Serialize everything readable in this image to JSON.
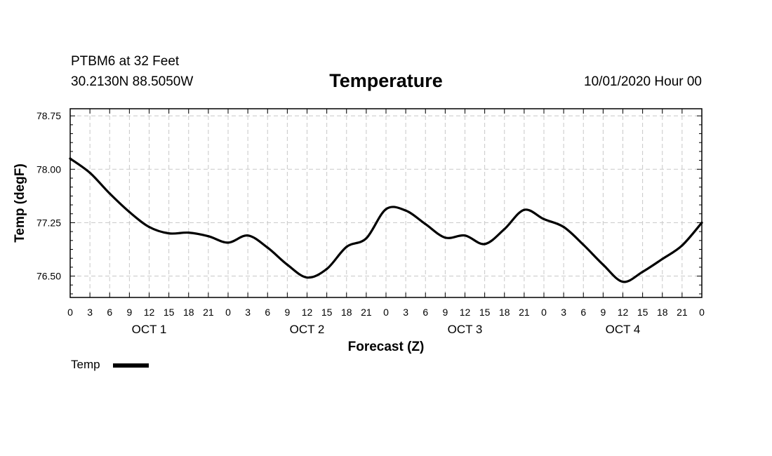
{
  "header": {
    "station": "PTBM6 at 32 Feet",
    "coords": "30.2130N 88.5050W",
    "run_time": "10/01/2020 Hour 00"
  },
  "chart_data": {
    "type": "line",
    "title": "Temperature",
    "xlabel": "Forecast (Z)",
    "ylabel": "Temp (degF)",
    "ylim": [
      76.2,
      78.85
    ],
    "yticks": [
      76.5,
      77.25,
      78.0,
      78.75
    ],
    "ytick_labels": [
      "76.50",
      "77.25",
      "78.00",
      "78.75"
    ],
    "xlim": [
      0,
      96
    ],
    "xticks": [
      0,
      3,
      6,
      9,
      12,
      15,
      18,
      21,
      24,
      27,
      30,
      33,
      36,
      39,
      42,
      45,
      48,
      51,
      54,
      57,
      60,
      63,
      66,
      69,
      72,
      75,
      78,
      81,
      84,
      87,
      90,
      93,
      96
    ],
    "xtick_labels": [
      "0",
      "3",
      "6",
      "9",
      "12",
      "15",
      "18",
      "21",
      "0",
      "3",
      "6",
      "9",
      "12",
      "15",
      "18",
      "21",
      "0",
      "3",
      "6",
      "9",
      "12",
      "15",
      "18",
      "21",
      "0",
      "3",
      "6",
      "9",
      "12",
      "15",
      "18",
      "21",
      "0"
    ],
    "day_labels": [
      {
        "label": "OCT 1",
        "x": 12
      },
      {
        "label": "OCT 2",
        "x": 36
      },
      {
        "label": "OCT 3",
        "x": 60
      },
      {
        "label": "OCT 4",
        "x": 84
      }
    ],
    "grid": true,
    "legend": {
      "position": "bottom-left",
      "entries": [
        "Temp"
      ]
    },
    "series": [
      {
        "name": "Temp",
        "color": "#000000",
        "x": [
          0,
          3,
          6,
          9,
          12,
          15,
          18,
          21,
          24,
          27,
          30,
          33,
          36,
          39,
          42,
          45,
          48,
          51,
          54,
          57,
          60,
          63,
          66,
          69,
          72,
          75,
          78,
          81,
          84,
          87,
          90,
          93,
          96
        ],
        "values": [
          78.15,
          77.95,
          77.66,
          77.4,
          77.19,
          77.1,
          77.11,
          77.06,
          76.97,
          77.07,
          76.9,
          76.66,
          76.48,
          76.6,
          76.91,
          77.03,
          77.44,
          77.42,
          77.23,
          77.04,
          77.07,
          76.95,
          77.16,
          77.43,
          77.3,
          77.19,
          76.94,
          76.66,
          76.42,
          76.56,
          76.74,
          76.93,
          77.25
        ]
      }
    ]
  }
}
